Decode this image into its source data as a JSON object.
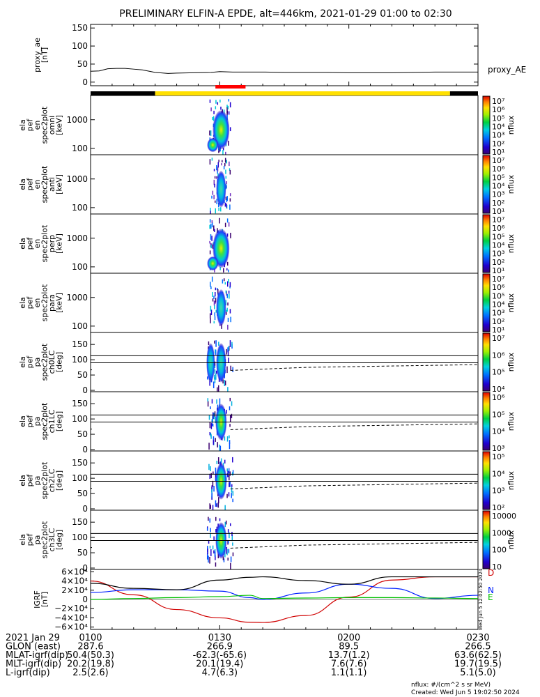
{
  "title": "PRELIMINARY ELFIN-A EPDE, alt=446km, 2021-01-29 01:00 to 02:30",
  "chart_data": [
    {
      "type": "line",
      "panel": "proxy_ae",
      "ylabel": [
        "proxy_ae",
        "[nT]"
      ],
      "yticks": [
        "150",
        "100",
        "50",
        "0"
      ],
      "ylim": [
        -10,
        160
      ],
      "legend": "proxy_AE",
      "x_minutes": [
        0,
        2,
        4,
        6,
        8,
        10,
        12,
        15,
        18,
        20,
        24,
        28,
        30,
        33,
        36,
        40,
        45,
        50,
        55,
        60,
        65,
        70,
        75,
        80,
        85,
        90
      ],
      "values": [
        30,
        31,
        37,
        38,
        38,
        36,
        34,
        27,
        24,
        25,
        26,
        27,
        29,
        28,
        28,
        28,
        27,
        27,
        27,
        26,
        26,
        26,
        27,
        28,
        28,
        28
      ]
    },
    {
      "type": "heatmap",
      "panel": "ela_pef_en_spec2plot_omni",
      "ylabel": [
        "ela",
        "pef",
        "en",
        "spec2plot",
        "omni",
        "[keV]"
      ],
      "yticks": [
        "1000",
        "100"
      ],
      "scale": "log",
      "ylim_keV": [
        60,
        7000
      ],
      "colorbar": {
        "label": "nflux",
        "scale": "log",
        "ticks": [
          "10⁷",
          "10⁶",
          "10⁵",
          "10⁴",
          "10³",
          "10²",
          "10¹"
        ]
      },
      "activity_minutes": [
        27.5,
        32.5
      ],
      "peak_minute": 30.0
    },
    {
      "type": "heatmap",
      "panel": "ela_pef_en_spec2plot_anti",
      "ylabel": [
        "ela",
        "pef",
        "en",
        "spec2plot",
        "anti",
        "[keV]"
      ],
      "yticks": [
        "1000",
        "100"
      ],
      "scale": "log",
      "colorbar": {
        "label": "nflux",
        "scale": "log",
        "ticks": [
          "10⁷",
          "10⁶",
          "10⁵",
          "10⁴",
          "10³",
          "10²",
          "10¹"
        ]
      },
      "activity_minutes": [
        27.5,
        32.5
      ],
      "peak_minute": 30.0
    },
    {
      "type": "heatmap",
      "panel": "ela_pef_en_spec2plot_perp",
      "ylabel": [
        "ela",
        "pef",
        "en",
        "spec2plot",
        "perp",
        "[keV]"
      ],
      "yticks": [
        "1000",
        "100"
      ],
      "scale": "log",
      "colorbar": {
        "label": "nflux",
        "scale": "log",
        "ticks": [
          "10⁷",
          "10⁶",
          "10⁵",
          "10⁴",
          "10³",
          "10²",
          "10¹"
        ]
      },
      "activity_minutes": [
        27.5,
        32.5
      ],
      "peak_minute": 30.0
    },
    {
      "type": "heatmap",
      "panel": "ela_pef_en_spec2plot_para",
      "ylabel": [
        "ela",
        "pef",
        "en",
        "spec2plot",
        "para",
        "[keV]"
      ],
      "yticks": [
        "1000",
        "100"
      ],
      "scale": "log",
      "colorbar": {
        "label": "nflux",
        "scale": "log",
        "ticks": [
          "10⁷",
          "10⁶",
          "10⁵",
          "10⁴",
          "10³",
          "10²",
          "10¹"
        ]
      },
      "activity_minutes": [
        27.5,
        32.5
      ],
      "peak_minute": 30.0
    },
    {
      "type": "heatmap",
      "panel": "ela_pef_pa_spec2plot_ch0LC",
      "ylabel": [
        "ela",
        "pef",
        "pa",
        "spec2plot",
        "ch0LC",
        "[deg]"
      ],
      "yticks": [
        "150",
        "100",
        "50",
        "0"
      ],
      "ylim_deg": [
        0,
        180
      ],
      "hlines_deg": [
        90
      ],
      "lc_levels_deg": [
        113,
        67
      ],
      "dashed_curve_deg": [
        [
          32.5,
          65
        ],
        [
          50,
          75
        ],
        [
          90,
          84
        ]
      ],
      "colorbar": {
        "label": "nflux",
        "scale": "log",
        "ticks": [
          "10⁷",
          "10⁶",
          "10⁵",
          "10⁴"
        ]
      },
      "activity_minutes": [
        27.0,
        33.0
      ]
    },
    {
      "type": "heatmap",
      "panel": "ela_pef_pa_spec2plot_ch1LC",
      "ylabel": [
        "ela",
        "pef",
        "pa",
        "spec2plot",
        "ch1LC",
        "[deg]"
      ],
      "yticks": [
        "150",
        "100",
        "50",
        "0"
      ],
      "ylim_deg": [
        0,
        180
      ],
      "hlines_deg": [
        90
      ],
      "lc_levels_deg": [
        113,
        67
      ],
      "dashed_curve_deg": [
        [
          32.5,
          65
        ],
        [
          50,
          75
        ],
        [
          90,
          84
        ]
      ],
      "colorbar": {
        "label": "nflux",
        "scale": "log",
        "ticks": [
          "10⁶",
          "10⁵",
          "10⁴",
          "10³"
        ]
      },
      "activity_minutes": [
        27.0,
        33.0
      ]
    },
    {
      "type": "heatmap",
      "panel": "ela_pef_pa_spec2plot_ch2LC",
      "ylabel": [
        "ela",
        "pef",
        "pa",
        "spec2plot",
        "ch2LC",
        "[deg]"
      ],
      "yticks": [
        "150",
        "100",
        "50",
        "0"
      ],
      "ylim_deg": [
        0,
        180
      ],
      "hlines_deg": [
        90
      ],
      "lc_levels_deg": [
        113,
        67
      ],
      "dashed_curve_deg": [
        [
          32.5,
          65
        ],
        [
          50,
          75
        ],
        [
          90,
          84
        ]
      ],
      "colorbar": {
        "label": "nflux",
        "scale": "log",
        "ticks": [
          "10⁵",
          "10⁴",
          "10³",
          "10²"
        ]
      },
      "activity_minutes": [
        27.0,
        33.0
      ]
    },
    {
      "type": "heatmap",
      "panel": "ela_pef_pa_spec2plot_ch3LC",
      "ylabel": [
        "ela",
        "pef",
        "pa",
        "spec2plot",
        "ch3LC",
        "[deg]"
      ],
      "yticks": [
        "150",
        "100",
        "50",
        "0"
      ],
      "ylim_deg": [
        0,
        180
      ],
      "hlines_deg": [
        90
      ],
      "lc_levels_deg": [
        113,
        67
      ],
      "dashed_curve_deg": [
        [
          32.5,
          65
        ],
        [
          50,
          75
        ],
        [
          90,
          84
        ]
      ],
      "colorbar": {
        "label": "nflux",
        "scale": "log",
        "ticks": [
          "10000",
          "1000",
          "100",
          "10"
        ]
      },
      "activity_minutes": [
        27.0,
        33.0
      ]
    },
    {
      "type": "line",
      "panel": "IGRF",
      "ylabel": [
        "IGRF",
        "[nT]"
      ],
      "yticks": [
        "6×10⁴",
        "4×10⁴",
        "2×10⁴",
        "0",
        "−2×10⁴",
        "−4×10⁴",
        "−6×10⁴"
      ],
      "ylim": [
        -65000,
        65000
      ],
      "side_note": "Wed Jun  5 12:02:50 2024",
      "x_minutes": [
        0,
        10,
        20,
        30,
        37,
        40,
        50,
        60,
        70,
        80,
        90
      ],
      "series": [
        {
          "name": "D",
          "color": "#d00000",
          "values": [
            40000,
            10000,
            -22000,
            -40000,
            -49500,
            -50000,
            -35000,
            5000,
            42000,
            49000,
            49000
          ]
        },
        {
          "name": "N",
          "color": "#0020ff",
          "values": [
            15000,
            21000,
            21000,
            18000,
            4000,
            0,
            14000,
            33000,
            24000,
            2000,
            9000
          ]
        },
        {
          "name": "E",
          "color": "#00c000",
          "values": [
            0,
            2000,
            4000,
            6000,
            9000,
            2000,
            3000,
            4000,
            4000,
            3000,
            2000
          ]
        },
        {
          "name": "",
          "color": "#000000",
          "values": [
            35000,
            24000,
            21000,
            42000,
            48000,
            49000,
            41000,
            33000,
            49000,
            49000,
            49000
          ]
        }
      ]
    }
  ],
  "status_bars": [
    {
      "color": "#000000",
      "start_minute": 0,
      "end_minute": 15
    },
    {
      "color": "#ffe000",
      "start_minute": 15,
      "end_minute": 83.5
    },
    {
      "color": "#000000",
      "start_minute": 83.5,
      "end_minute": 90
    },
    {
      "color": "#ff0000",
      "start_minute": 29,
      "end_minute": 36
    }
  ],
  "x_axis": {
    "rows": [
      {
        "label": "2021 Jan 29",
        "values": [
          "0100",
          "0130",
          "0200",
          "0230"
        ]
      },
      {
        "label": "GLON (east)",
        "values": [
          "287.6",
          "266.9",
          "89.5",
          "266.5"
        ]
      },
      {
        "label": "MLAT-igrf(dip)",
        "values": [
          "50.4(50.3)",
          "-62.3(-65.6)",
          "13.7(1.2)",
          "63.6(62.5)"
        ]
      },
      {
        "label": "MLT-igrf(dip)",
        "values": [
          "20.2(19.8)",
          "20.1(19.4)",
          "7.6(7.6)",
          "19.7(19.5)"
        ]
      },
      {
        "label": "L-igrf(dip)",
        "values": [
          "2.5(2.6)",
          "4.7(6.3)",
          "1.1(1.1)",
          "5.1(5.0)"
        ]
      }
    ]
  },
  "footer": {
    "units": "nflux: #/(cm^2 s sr MeV)",
    "created": "Created: Wed Jun  5 19:02:50 2024"
  }
}
